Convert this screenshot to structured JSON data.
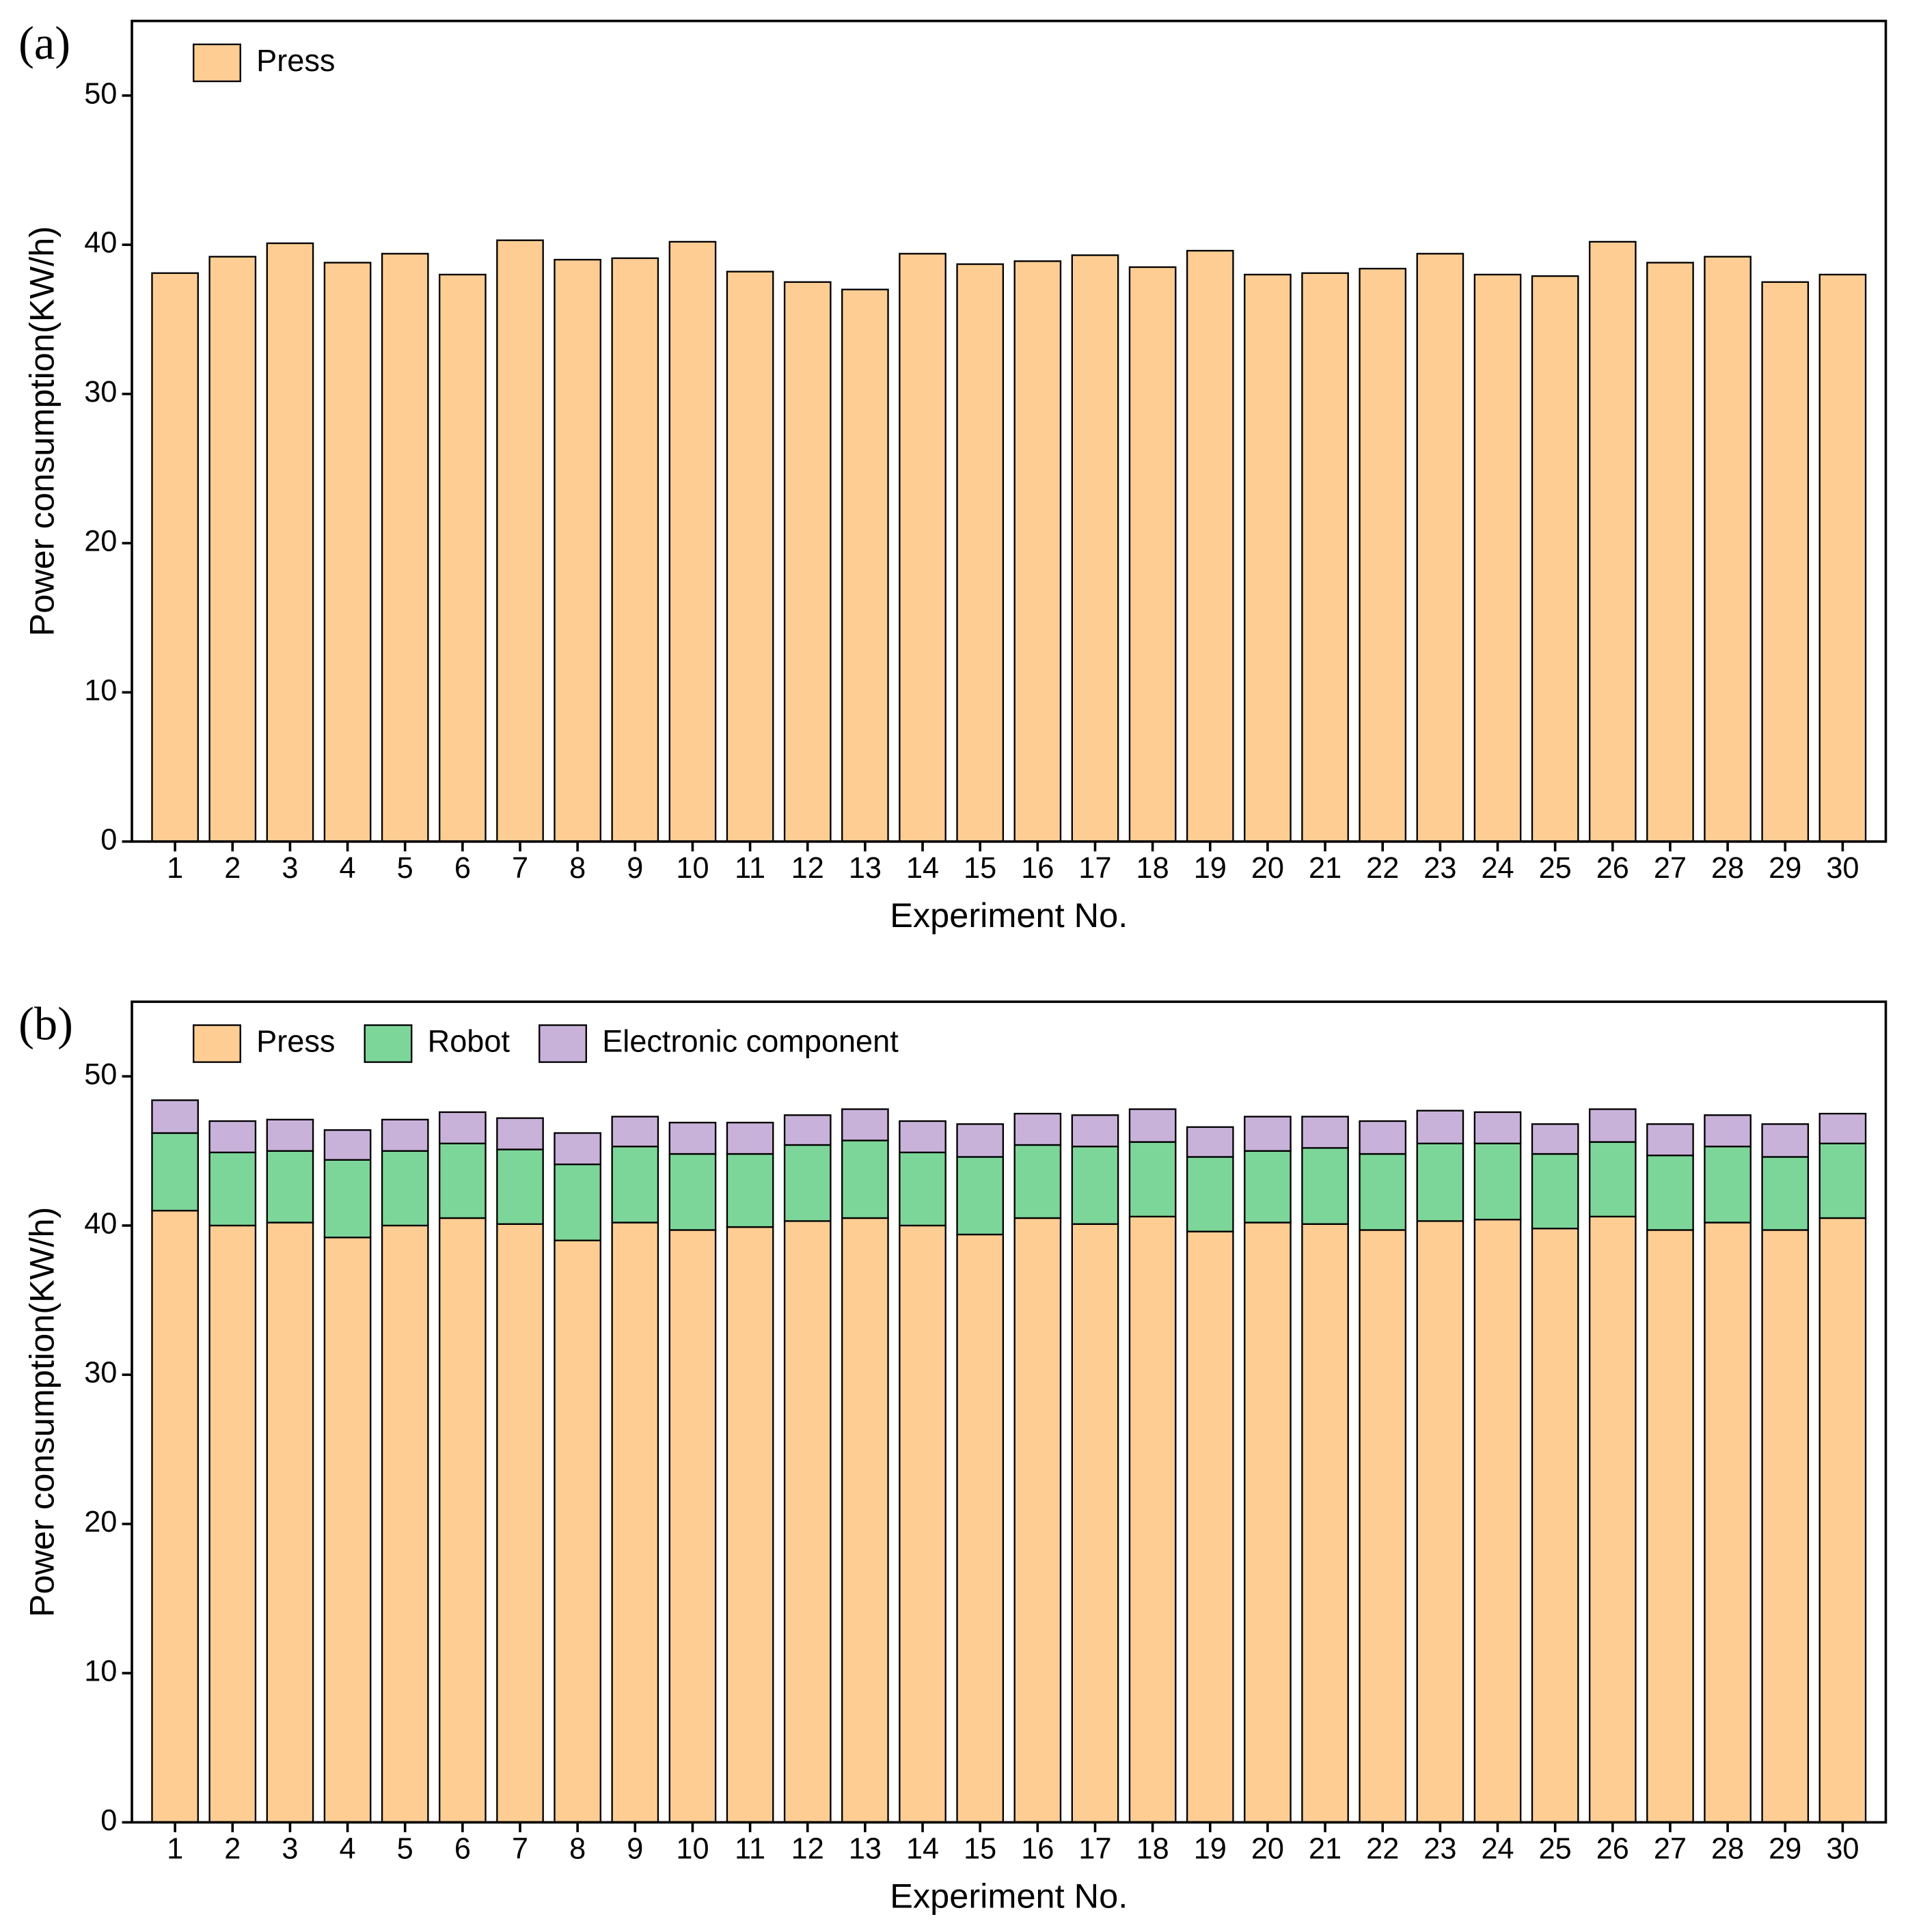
{
  "chart_data": [
    {
      "type": "bar",
      "panel_label": "(a)",
      "x_label": "Experiment No.",
      "y_label": "Power consumption(KW/h)",
      "categories": [
        "1",
        "2",
        "3",
        "4",
        "5",
        "6",
        "7",
        "8",
        "9",
        "10",
        "11",
        "12",
        "13",
        "14",
        "15",
        "16",
        "17",
        "18",
        "19",
        "20",
        "21",
        "22",
        "23",
        "24",
        "25",
        "26",
        "27",
        "28",
        "29",
        "30"
      ],
      "series": [
        {
          "name": "Press",
          "color": "#fdcd93",
          "values": [
            38.1,
            39.2,
            40.1,
            38.8,
            39.4,
            38.0,
            40.3,
            39.0,
            39.1,
            40.2,
            38.2,
            37.5,
            37.0,
            39.4,
            38.7,
            38.9,
            39.3,
            38.5,
            39.6,
            38.0,
            38.1,
            38.4,
            39.4,
            38.0,
            37.9,
            40.2,
            38.8,
            39.2,
            37.5,
            38.0
          ]
        }
      ],
      "ylim": [
        0,
        55
      ],
      "yticks": [
        0,
        10,
        20,
        30,
        40,
        50
      ],
      "legend": "upper left"
    },
    {
      "type": "stacked_bar",
      "panel_label": "(b)",
      "x_label": "Experiment No.",
      "y_label": "Power consumption(KW/h)",
      "categories": [
        "1",
        "2",
        "3",
        "4",
        "5",
        "6",
        "7",
        "8",
        "9",
        "10",
        "11",
        "12",
        "13",
        "14",
        "15",
        "16",
        "17",
        "18",
        "19",
        "20",
        "21",
        "22",
        "23",
        "24",
        "25",
        "26",
        "27",
        "28",
        "29",
        "30"
      ],
      "series": [
        {
          "name": "Press",
          "color": "#fdcd93",
          "values": [
            41.0,
            40.0,
            40.2,
            39.2,
            40.0,
            40.5,
            40.1,
            39.0,
            40.2,
            39.7,
            39.9,
            40.3,
            40.5,
            40.0,
            39.4,
            40.5,
            40.1,
            40.6,
            39.6,
            40.2,
            40.1,
            39.7,
            40.3,
            40.4,
            39.8,
            40.6,
            39.7,
            40.2,
            39.7,
            40.5
          ]
        },
        {
          "name": "Robot",
          "color": "#7dd699",
          "values": [
            5.2,
            4.9,
            4.8,
            5.2,
            5.0,
            5.0,
            5.0,
            5.1,
            5.1,
            5.1,
            4.9,
            5.1,
            5.2,
            4.9,
            5.2,
            4.9,
            5.2,
            5.0,
            5.0,
            4.8,
            5.1,
            5.1,
            5.2,
            5.1,
            5.0,
            5.0,
            5.0,
            5.1,
            4.9,
            5.0
          ]
        },
        {
          "name": "Electronic component",
          "color": "#c9b2da",
          "values": [
            2.2,
            2.1,
            2.1,
            2.0,
            2.1,
            2.1,
            2.1,
            2.1,
            2.0,
            2.1,
            2.1,
            2.0,
            2.1,
            2.1,
            2.2,
            2.1,
            2.1,
            2.2,
            2.0,
            2.3,
            2.1,
            2.2,
            2.2,
            2.1,
            2.0,
            2.2,
            2.1,
            2.1,
            2.2,
            2.0
          ]
        }
      ],
      "ylim": [
        0,
        55
      ],
      "yticks": [
        0,
        10,
        20,
        30,
        40,
        50
      ],
      "legend": "upper left"
    }
  ]
}
